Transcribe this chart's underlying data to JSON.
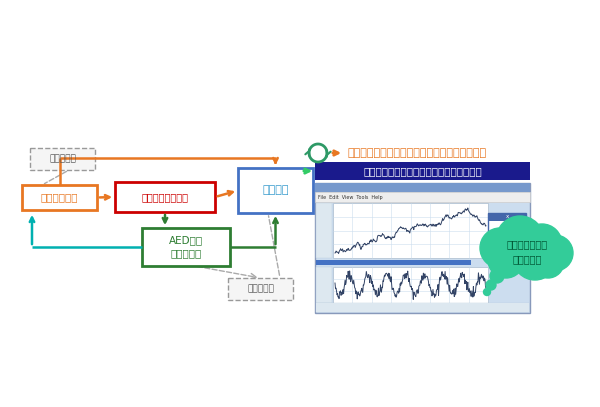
{
  "left_panel": {
    "data_record1_label": "データ記録",
    "ecg_data_label": "心電図データ",
    "early_recog_label": "早期認識システム",
    "waveform_display_label": "波形表示",
    "aed_label": "AED判定\nプログラム",
    "data_record2_label": "データ記録",
    "ecg_box_color": "#e87722",
    "early_recog_box_color": "#cc0000",
    "waveform_box_color": "#4472c4",
    "aed_box_color": "#2e7d32",
    "arrow_color_orange": "#e87722",
    "arrow_color_green": "#2e7d32",
    "arrow_color_teal": "#00b0b0"
  },
  "right_panel": {
    "title1": "検証用システムに記録される心電図波形データ",
    "title2": "心電図波形リアルタイム表示シミュレータ",
    "title1_color": "#e87722",
    "title2_color": "#ffffff",
    "title2_bg": "#1a1a8c",
    "bubble_text": "波形が時々刻々\n流れている",
    "bubble_color": "#33cc99",
    "bubble_text_color": "#005533"
  }
}
